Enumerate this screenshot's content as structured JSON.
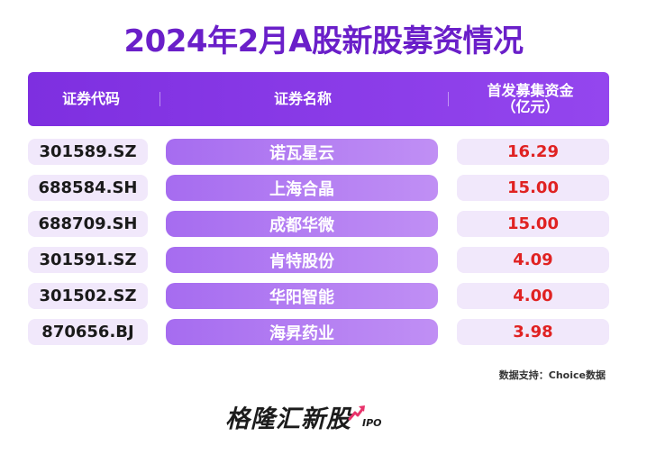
{
  "title": "2024年2月A股新股募资情况",
  "table": {
    "headers": {
      "code": "证券代码",
      "name": "证券名称",
      "amount_line1": "首发募集资金",
      "amount_line2": "（亿元）"
    },
    "rows": [
      {
        "code": "301589.SZ",
        "name": "诺瓦星云",
        "amount": "16.29"
      },
      {
        "code": "688584.SH",
        "name": "上海合晶",
        "amount": "15.00"
      },
      {
        "code": "688709.SH",
        "name": "成都华微",
        "amount": "15.00"
      },
      {
        "code": "301591.SZ",
        "name": "肯特股份",
        "amount": "4.09"
      },
      {
        "code": "301502.SZ",
        "name": "华阳智能",
        "amount": "4.00"
      },
      {
        "code": "870656.BJ",
        "name": "海昇药业",
        "amount": "3.98"
      }
    ]
  },
  "source": "数据支持：Choice数据",
  "logo": {
    "text": "格隆汇新股",
    "suffix": "IPO",
    "icon": "arrow-up-right-icon"
  },
  "colors": {
    "title": "#6a1fc9",
    "header_bg": "#8a3ce8",
    "name_cell_bg": "#b07cf2",
    "code_cell_bg": "#f1e8fb",
    "amount_text": "#e02222",
    "logo_arrow": "#e8336b"
  }
}
